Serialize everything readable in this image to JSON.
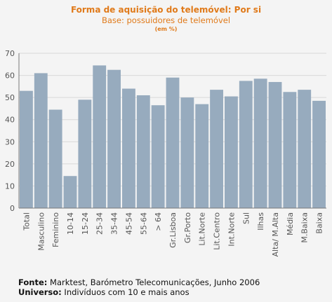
{
  "header": {
    "title": "Forma de aquisição do telemóvel: Por si",
    "subtitle": "Base: possuidores de telemóvel",
    "unit": "(em %)"
  },
  "footer": {
    "source_label": "Fonte:",
    "source_text": " Marktest, Barómetro Telecomunicações, Junho 2006",
    "universe_label": "Universo:",
    "universe_text": " Indivíduos com 10 e mais anos"
  },
  "chart_data": {
    "type": "bar",
    "title": "Forma de aquisição do telemóvel: Por si",
    "subtitle": "Base: possuidores de telemóvel",
    "categories": [
      "Total",
      "Masculino",
      "Feminino",
      "10-14",
      "15-24",
      "25-34",
      "35-44",
      "45-54",
      "55-64",
      "> 64",
      "Gr.Lisboa",
      "Gr.Porto",
      "Lit.Norte",
      "Lit.Centro",
      "Int.Norte",
      "Sul",
      "Ilhas",
      "Alta/ M.Alta",
      "Média",
      "M.Baixa",
      "Baixa"
    ],
    "values": [
      53,
      61,
      44.5,
      14.5,
      49,
      64.5,
      62.5,
      54,
      51,
      46.5,
      59,
      50,
      47,
      53.5,
      50.5,
      57.5,
      58.5,
      57,
      52.5,
      53.5,
      48.5
    ],
    "yticks": [
      0,
      10,
      20,
      30,
      40,
      50,
      60,
      70
    ],
    "ylim": [
      0,
      70
    ],
    "grid": true,
    "colors": {
      "bar": "#97abbe",
      "grid": "#d8d8d8",
      "axis": "#7a7a7a",
      "text": "#555555"
    }
  }
}
